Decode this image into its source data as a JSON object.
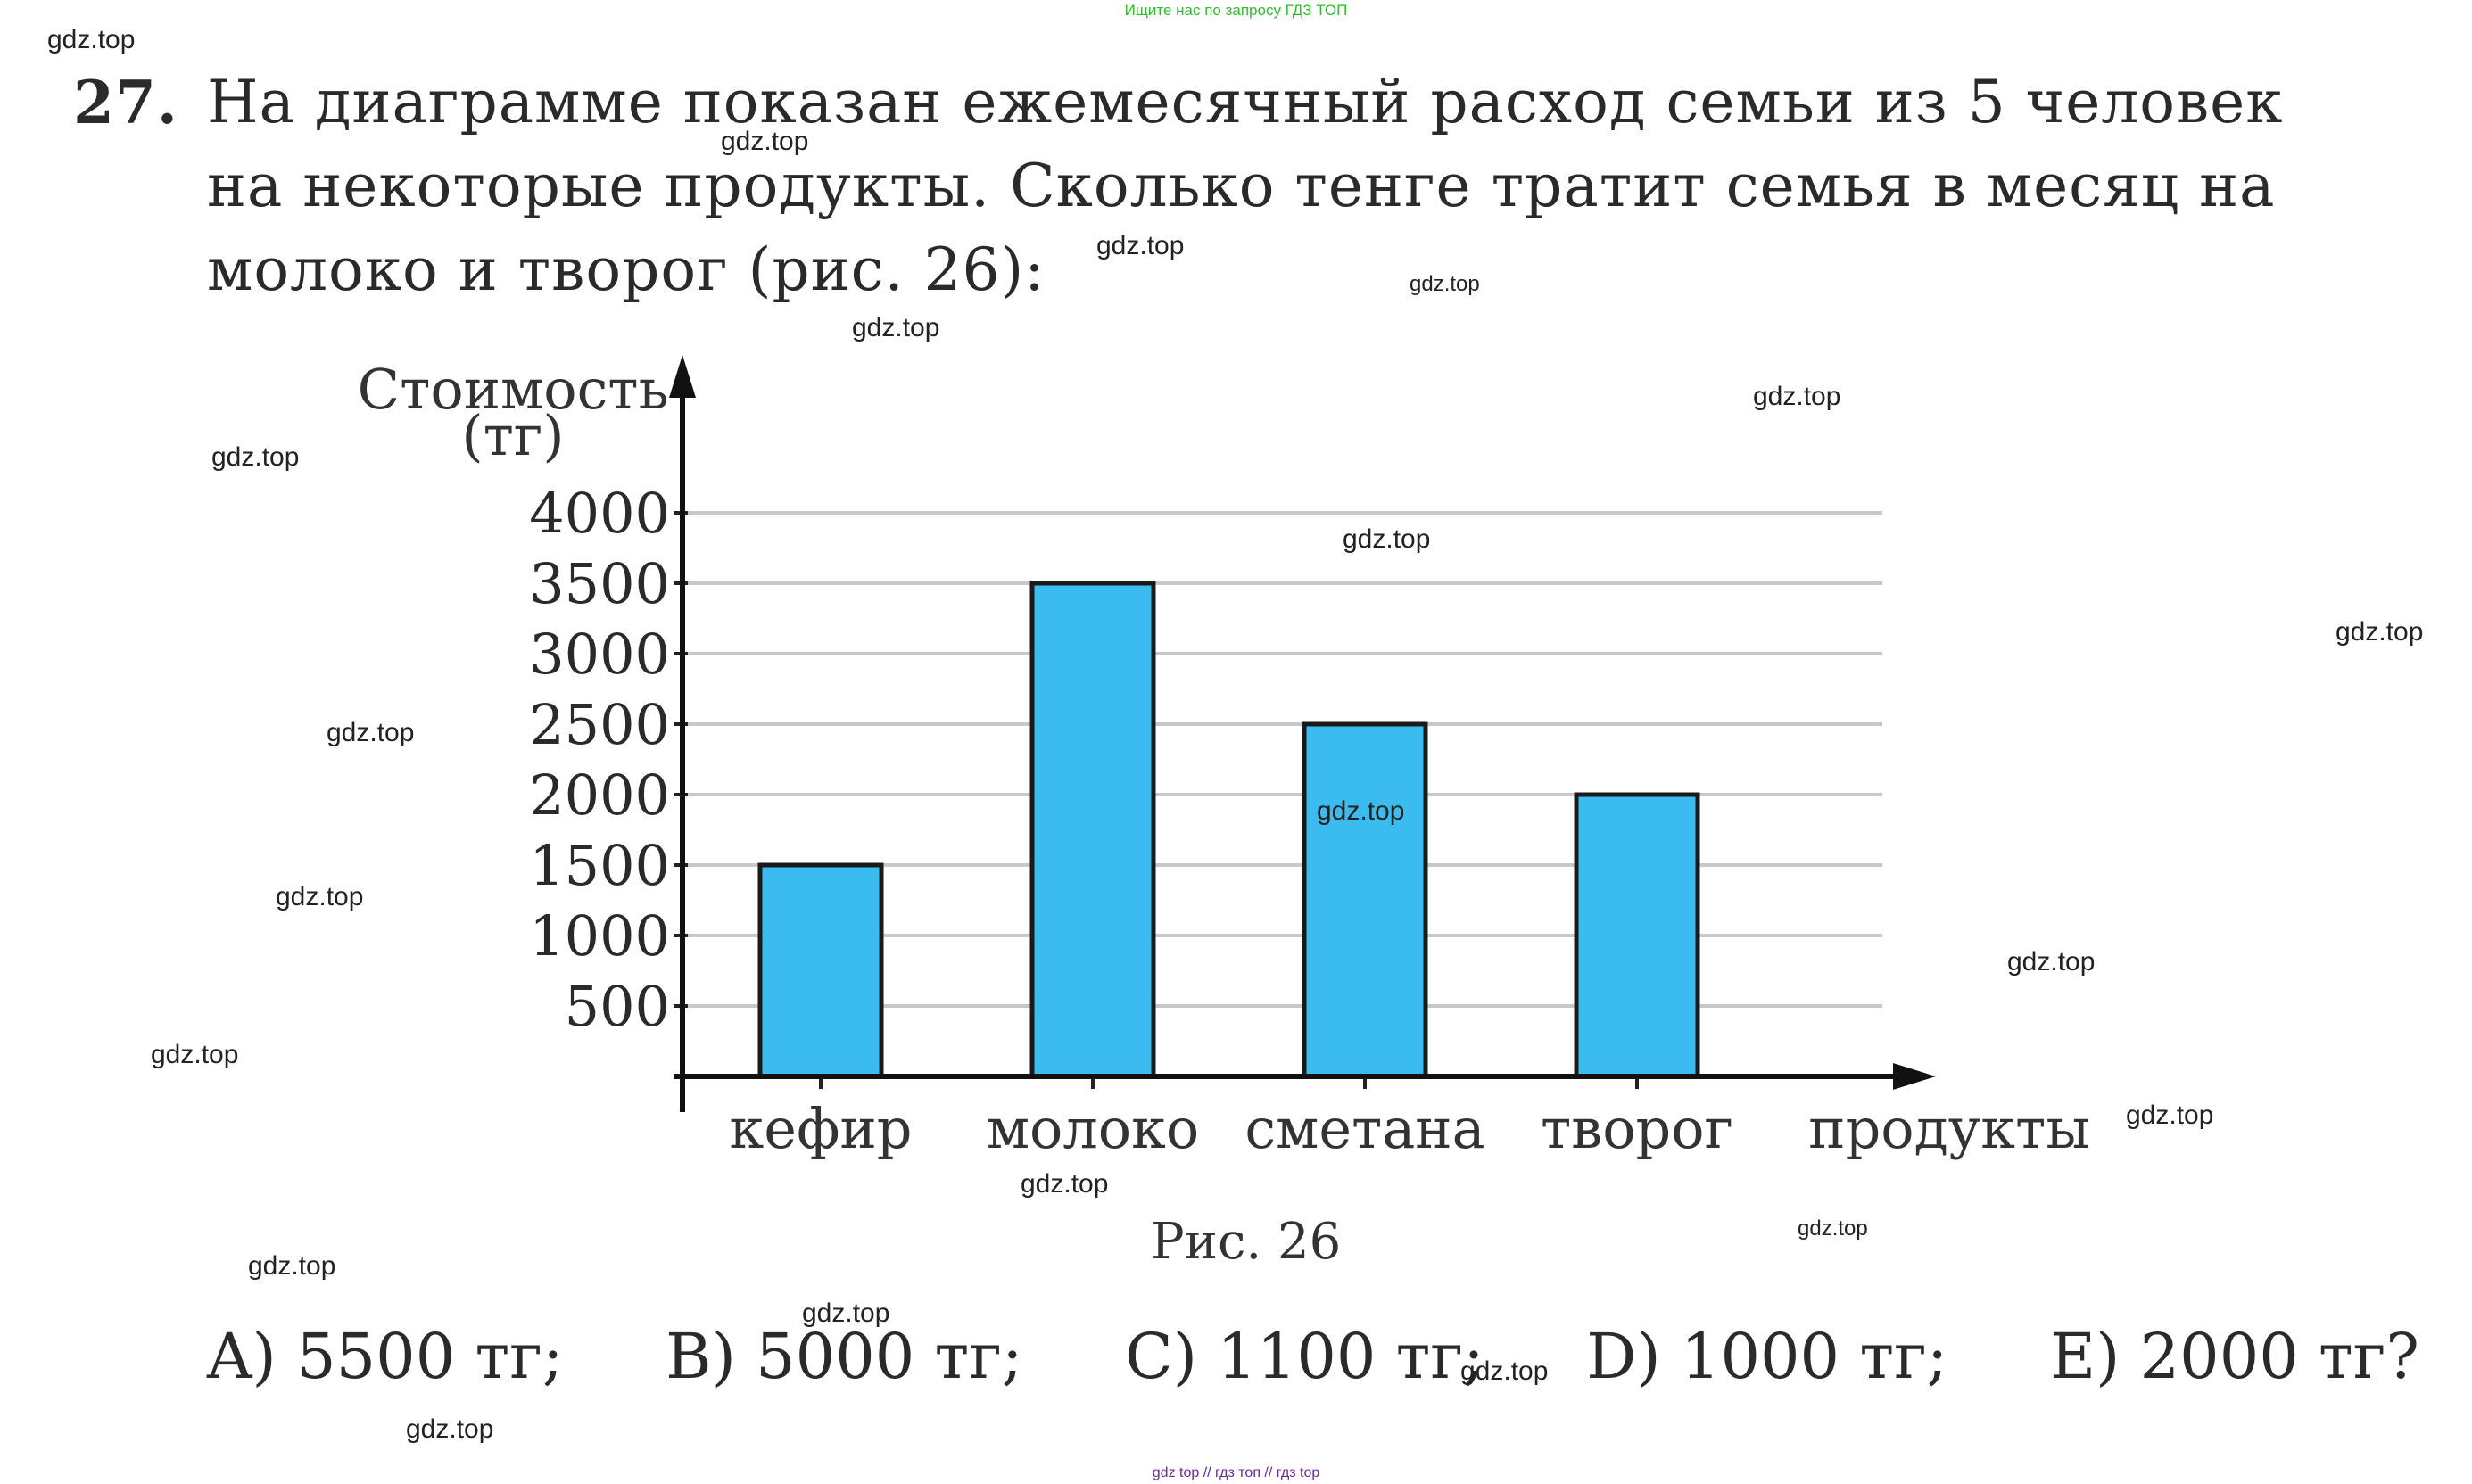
{
  "top_banner": "Ищите нас по запросу ГДЗ ТОП",
  "problem": {
    "number": "27.",
    "lines": [
      "На диаграмме показан ежемесячный расход семьи из 5 человек",
      "на некоторые продукты. Сколько тенге тратит семья в месяц на",
      "молоко и творог (рис. 26):"
    ]
  },
  "chart_data": {
    "type": "bar",
    "ylabel_lines": [
      "Стоимость",
      "(тг)"
    ],
    "xlabel": "продукты",
    "categories": [
      "кефир",
      "молоко",
      "сметана",
      "творог"
    ],
    "values": [
      1500,
      3500,
      2500,
      2000
    ],
    "yticks": [
      500,
      1000,
      1500,
      2000,
      2500,
      3000,
      3500,
      4000
    ],
    "ylim": [
      0,
      4000
    ],
    "grid": true,
    "bar_color": "#3bbcf0",
    "bar_edge_color": "#1a1a1a"
  },
  "caption": "Рис. 26",
  "answers": [
    "A) 5500 тг;",
    "B) 5000 тг;",
    "C) 1100 тг;",
    "D) 1000 тг;",
    "E) 2000 тг?"
  ],
  "watermark_text": "gdz.top",
  "bottom_banner": "gdz top  //  гдз топ  //  гдз top"
}
